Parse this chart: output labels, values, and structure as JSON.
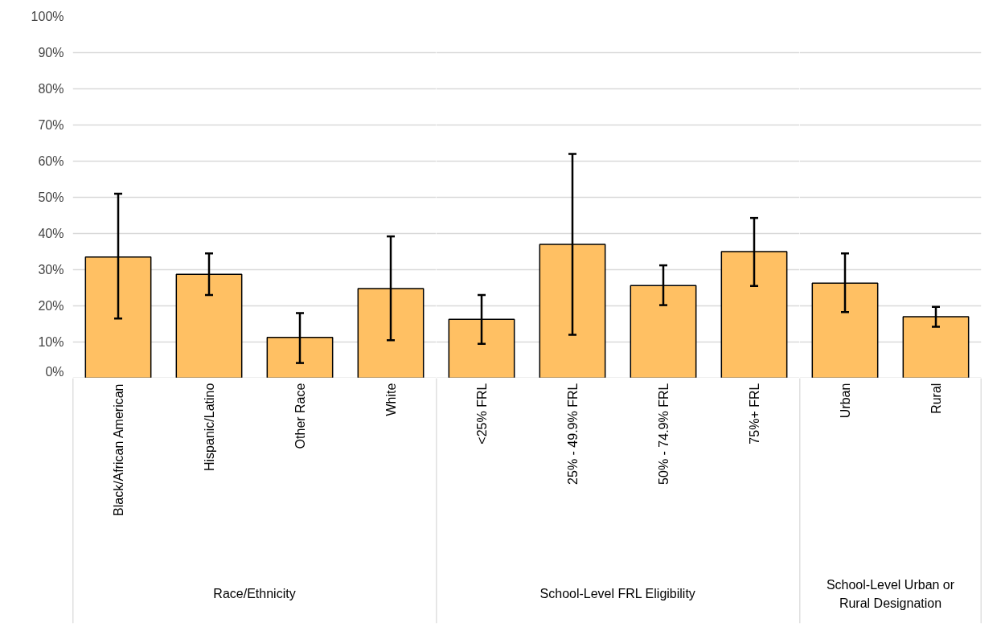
{
  "chart_data": [
    {
      "type": "bar",
      "xlabel": "Race/Ethnicity",
      "categories": [
        "Black/African American",
        "Hispanic/Latino",
        "Other Race",
        "White"
      ],
      "series": [
        {
          "color": "#ffc063",
          "values": [
            33.5,
            28.7,
            11.3,
            24.8
          ],
          "errors": [
            [
              16.5,
              51
            ],
            [
              23,
              34.5
            ],
            [
              4.2,
              18
            ],
            [
              10.5,
              39.2
            ]
          ]
        }
      ],
      "ylim": [
        0,
        100
      ],
      "yticks": [
        {
          "value": 0,
          "label": "0%"
        },
        {
          "value": 10,
          "label": "10%"
        },
        {
          "value": 20,
          "label": "20%"
        },
        {
          "value": 30,
          "label": "30%"
        },
        {
          "value": 40,
          "label": "40%"
        },
        {
          "value": 50,
          "label": "50%"
        },
        {
          "value": 60,
          "label": "60%"
        },
        {
          "value": 70,
          "label": "70%"
        },
        {
          "value": 80,
          "label": "80%"
        },
        {
          "value": 90,
          "label": "90%"
        },
        {
          "value": 100,
          "label": "100%"
        }
      ],
      "grid": "y"
    },
    {
      "type": "bar",
      "xlabel": "School-Level FRL Eligibility",
      "categories": [
        "<25% FRL",
        "25% - 49.9% FRL",
        "50% - 74.9% FRL",
        "75%+ FRL"
      ],
      "series": [
        {
          "color": "#ffc063",
          "values": [
            16.3,
            37,
            25.6,
            35
          ],
          "errors": [
            [
              9.5,
              23
            ],
            [
              12,
              62
            ],
            [
              20.2,
              31.2
            ],
            [
              25.5,
              44.3
            ]
          ]
        }
      ],
      "ylim": [
        0,
        100
      ],
      "yticks": [
        {
          "value": 0,
          "label": null
        },
        {
          "value": 10,
          "label": null
        },
        {
          "value": 20,
          "label": null
        },
        {
          "value": 30,
          "label": null
        },
        {
          "value": 40,
          "label": null
        },
        {
          "value": 50,
          "label": null
        },
        {
          "value": 60,
          "label": null
        },
        {
          "value": 70,
          "label": null
        },
        {
          "value": 80,
          "label": null
        },
        {
          "value": 90,
          "label": null
        },
        {
          "value": 100,
          "label": null
        }
      ],
      "grid": "y",
      "tick_labels": "x"
    },
    {
      "type": "bar",
      "xlabel": "School-Level Urban or\nRural Designation",
      "categories": [
        "Urban",
        "Rural"
      ],
      "series": [
        {
          "color": "#ffc063",
          "values": [
            26.3,
            17
          ],
          "errors": [
            [
              18.3,
              34.5
            ],
            [
              14.2,
              19.7
            ]
          ]
        }
      ],
      "ylim": [
        0,
        100
      ],
      "yticks": [
        {
          "value": 0,
          "label": null
        },
        {
          "value": 10,
          "label": null
        },
        {
          "value": 20,
          "label": null
        },
        {
          "value": 30,
          "label": null
        },
        {
          "value": 40,
          "label": null
        },
        {
          "value": 50,
          "label": null
        },
        {
          "value": 60,
          "label": null
        },
        {
          "value": 70,
          "label": null
        },
        {
          "value": 80,
          "label": null
        },
        {
          "value": 90,
          "label": null
        },
        {
          "value": 100,
          "label": null
        }
      ],
      "grid": "y",
      "tick_labels": "x"
    }
  ]
}
